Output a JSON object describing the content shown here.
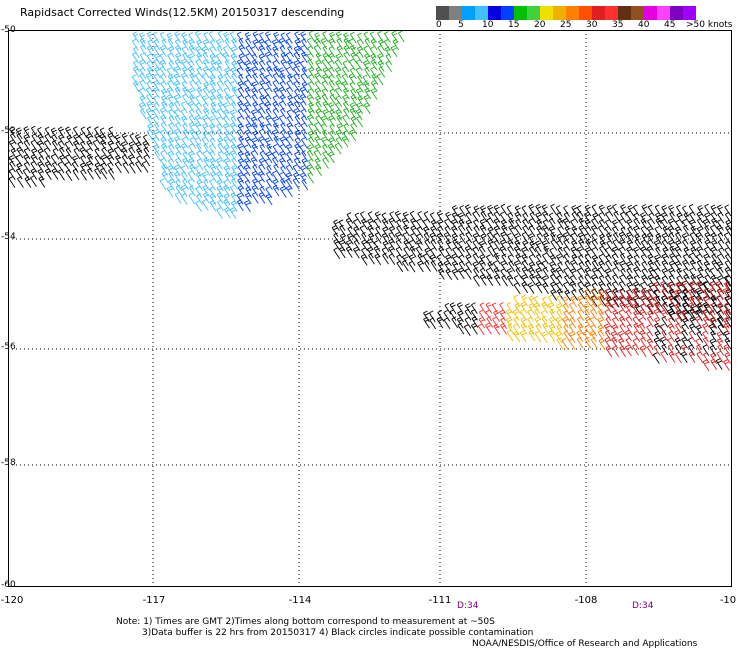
{
  "title": "Rapidsact Corrected Winds(12.5KM) 20150317 descending",
  "legend": {
    "colors": [
      "#505050",
      "#808080",
      "#00a0ff",
      "#40c0ff",
      "#0000e0",
      "#0040ff",
      "#00c000",
      "#40d040",
      "#f0e000",
      "#f0b000",
      "#ff8000",
      "#ff5000",
      "#e02020",
      "#ff3030",
      "#603010",
      "#905020",
      "#e000e0",
      "#ff40ff",
      "#8000c0",
      "#a000ff"
    ],
    "labels": [
      "0",
      "5",
      "10",
      "15",
      "20",
      "25",
      "30",
      "35",
      "40",
      "45",
      ">50 knots"
    ]
  },
  "axes": {
    "lat_labels": [
      "-50",
      "-52",
      "-54",
      "-56",
      "-58",
      "-60"
    ],
    "lon_labels": [
      "-120",
      "-117",
      "-114",
      "-111",
      "-108",
      "-10"
    ]
  },
  "time_labels": [
    "D:34",
    "D:34"
  ],
  "notes": {
    "line1": "Note: 1) Times are GMT 2)Times along bottom correspond to measurement at ~50S",
    "line2": "3)Data buffer is 22 hrs from 20150317 4) Black circles indicate possible contamination"
  },
  "credit": "NOAA/NESDIS/Office of Research and Applications"
}
